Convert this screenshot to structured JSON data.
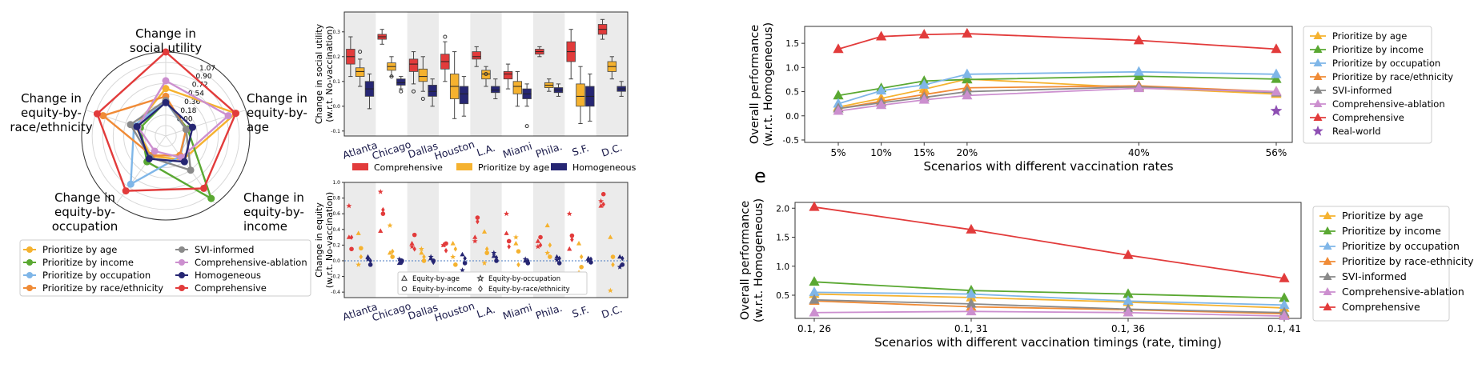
{
  "radar": {
    "axes": [
      "Change in\nsocial utility",
      "Change in\nequity-by-\nage",
      "Change in\nequity-by-\nincome",
      "Change in\nequity-by-\noccupation",
      "Change in\nequity-by-\nrace/ethnicity"
    ],
    "ticks": [
      "1.07",
      "0.90",
      "0.72",
      "0.54",
      "0.36",
      "0.18",
      "0.00"
    ],
    "range": [
      -0.36,
      1.25
    ],
    "series": [
      {
        "name": "Prioritize by age",
        "color": "#f5b22f",
        "values": [
          0.55,
          1.05,
          0.2,
          0.12,
          0.25
        ]
      },
      {
        "name": "Prioritize by income",
        "color": "#5aa832",
        "values": [
          0.3,
          0.08,
          1.12,
          0.25,
          0.15
        ]
      },
      {
        "name": "Prioritize by occupation",
        "color": "#7fb6e8",
        "values": [
          0.3,
          0.05,
          0.12,
          0.78,
          0.28
        ]
      },
      {
        "name": "Prioritize by race/ethnicity",
        "color": "#f08b36",
        "values": [
          0.4,
          0.05,
          0.1,
          0.1,
          0.9
        ]
      },
      {
        "name": "SVI-informed",
        "color": "#8a8a8a",
        "values": [
          0.32,
          0.05,
          0.45,
          0.15,
          0.35
        ]
      },
      {
        "name": "Comprehensive-ablation",
        "color": "#cc8fcf",
        "values": [
          0.7,
          0.9,
          0.15,
          0.0,
          0.2
        ]
      },
      {
        "name": "Homogeneous",
        "color": "#262673",
        "values": [
          0.28,
          0.18,
          0.25,
          0.18,
          0.22
        ]
      },
      {
        "name": "Comprehensive",
        "color": "#e23b3b",
        "values": [
          1.25,
          1.05,
          0.88,
          0.94,
          1.02
        ]
      }
    ],
    "legend_order": [
      0,
      4,
      1,
      5,
      2,
      6,
      3,
      7
    ]
  },
  "boxplot": {
    "ylabel": "Change in social utility\n(w.r.t. No-vaccination)",
    "yticks": [
      "-0.1",
      "0.0",
      "0.1",
      "0.2",
      "0.3"
    ],
    "ylim": [
      -0.12,
      0.38
    ],
    "cities": [
      "Atlanta",
      "Chicago",
      "Dallas",
      "Houston",
      "L.A.",
      "Miami",
      "Phila.",
      "S.F.",
      "D.C."
    ],
    "series": [
      {
        "name": "Comprehensive",
        "color": "#e23b3b",
        "boxes": [
          [
            0.12,
            0.17,
            0.2,
            0.23,
            0.28
          ],
          [
            0.25,
            0.27,
            0.28,
            0.29,
            0.31
          ],
          [
            0.09,
            0.14,
            0.17,
            0.19,
            0.22
          ],
          [
            0.1,
            0.15,
            0.18,
            0.21,
            0.26
          ],
          [
            0.16,
            0.19,
            0.2,
            0.22,
            0.24
          ],
          [
            0.07,
            0.11,
            0.13,
            0.14,
            0.17
          ],
          [
            0.2,
            0.21,
            0.22,
            0.23,
            0.24
          ],
          [
            0.11,
            0.18,
            0.22,
            0.26,
            0.31
          ],
          [
            0.27,
            0.29,
            0.31,
            0.33,
            0.35
          ]
        ]
      },
      {
        "name": "Prioritize by age",
        "color": "#f5b22f",
        "boxes": [
          [
            0.08,
            0.12,
            0.14,
            0.155,
            0.19
          ],
          [
            0.12,
            0.145,
            0.16,
            0.175,
            0.2
          ],
          [
            0.06,
            0.1,
            0.12,
            0.15,
            0.2
          ],
          [
            -0.05,
            0.03,
            0.08,
            0.13,
            0.22
          ],
          [
            0.08,
            0.11,
            0.13,
            0.145,
            0.16
          ],
          [
            0.0,
            0.05,
            0.08,
            0.1,
            0.14
          ],
          [
            0.06,
            0.075,
            0.085,
            0.095,
            0.11
          ],
          [
            -0.07,
            0.0,
            0.04,
            0.09,
            0.16
          ],
          [
            0.11,
            0.14,
            0.16,
            0.18,
            0.2
          ]
        ]
      },
      {
        "name": "Homogeneous",
        "color": "#262673",
        "boxes": [
          [
            -0.01,
            0.04,
            0.07,
            0.1,
            0.13
          ],
          [
            0.07,
            0.085,
            0.095,
            0.11,
            0.12
          ],
          [
            0.0,
            0.04,
            0.06,
            0.085,
            0.11
          ],
          [
            -0.04,
            0.01,
            0.05,
            0.08,
            0.12
          ],
          [
            0.03,
            0.055,
            0.065,
            0.08,
            0.11
          ],
          [
            0.0,
            0.03,
            0.05,
            0.07,
            0.09
          ],
          [
            0.04,
            0.055,
            0.065,
            0.075,
            0.09
          ],
          [
            -0.06,
            0.0,
            0.04,
            0.08,
            0.13
          ],
          [
            0.04,
            0.06,
            0.07,
            0.08,
            0.1
          ]
        ]
      }
    ],
    "outliers": [
      [
        0,
        1,
        0.22
      ],
      [
        1,
        1,
        0.12
      ],
      [
        1,
        2,
        0.06
      ],
      [
        2,
        0,
        0.06
      ],
      [
        2,
        1,
        0.03
      ],
      [
        4,
        1,
        0.13
      ],
      [
        5,
        2,
        -0.08
      ],
      [
        3,
        0,
        0.28
      ]
    ],
    "legend": [
      "Comprehensive",
      "Prioritize by age",
      "Homogeneous"
    ]
  },
  "equity": {
    "ylabel": "Change in equity\n(w.r.t. No-vaccination)",
    "yticks": [
      "-0.4",
      "-0.2",
      "0.0",
      "0.2",
      "0.4",
      "0.6",
      "0.8",
      "1.0"
    ],
    "ylim": [
      -0.47,
      1.0
    ],
    "cities": [
      "Atlanta",
      "Chicago",
      "Dallas",
      "Houston",
      "L.A.",
      "Miami",
      "Phila.",
      "S.F.",
      "D.C."
    ],
    "legend": [
      {
        "name": "Equity-by-age",
        "shape": "triangle"
      },
      {
        "name": "Equity-by-occupation",
        "shape": "star"
      },
      {
        "name": "Equity-by-income",
        "shape": "circle"
      },
      {
        "name": "Equity-by-race/ethnicity",
        "shape": "diamond"
      }
    ],
    "series": [
      {
        "name": "Comprehensive",
        "color": "#e23b3b",
        "values": [
          [
            0.3,
            0.15,
            0.7,
            0.3
          ],
          [
            0.38,
            0.6,
            0.88,
            0.65
          ],
          [
            0.22,
            0.33,
            0.18,
            0.15
          ],
          [
            0.2,
            0.22,
            0.2,
            0.13
          ],
          [
            0.3,
            0.55,
            0.25,
            0.5
          ],
          [
            0.35,
            0.25,
            0.6,
            0.18
          ],
          [
            0.25,
            0.3,
            0.18,
            0.2
          ],
          [
            0.15,
            0.32,
            0.6,
            0.27
          ],
          [
            0.7,
            0.85,
            0.76,
            0.72
          ]
        ]
      },
      {
        "name": "Prioritize by age",
        "color": "#f5b22f",
        "values": [
          [
            0.35,
            0.16,
            -0.05,
            0.05
          ],
          [
            0.1,
            0.05,
            0.45,
            0.12
          ],
          [
            0.1,
            0.0,
            0.15,
            0.05
          ],
          [
            0.22,
            -0.05,
            0.05,
            0.15
          ],
          [
            0.37,
            0.1,
            -0.03,
            0.15
          ],
          [
            0.22,
            0.12,
            0.3,
            -0.05
          ],
          [
            0.45,
            0.05,
            0.1,
            0.2
          ],
          [
            0.22,
            -0.08,
            -0.15,
            0.05
          ],
          [
            0.3,
            0.05,
            -0.38,
            -0.05
          ]
        ]
      },
      {
        "name": "Homogeneous",
        "color": "#262673",
        "values": [
          [
            0.05,
            -0.05,
            0.02,
            0.0
          ],
          [
            -0.03,
            0.0,
            0.02,
            -0.02
          ],
          [
            0.03,
            0.0,
            0.05,
            -0.02
          ],
          [
            0.08,
            -0.03,
            -0.12,
            0.03
          ],
          [
            0.06,
            0.0,
            0.1,
            0.04
          ],
          [
            0.0,
            -0.03,
            0.02,
            0.0
          ],
          [
            0.05,
            -0.03,
            0.01,
            0.03
          ],
          [
            0.03,
            -0.02,
            0.0,
            0.02
          ],
          [
            0.05,
            -0.05,
            -0.08,
            0.03
          ]
        ]
      }
    ]
  },
  "label_e": "e",
  "line_top": {
    "ylabel": "Overall performance\n(w.r.t. Homogeneous)",
    "xlabel": "Scenarios with different vaccination rates",
    "x": [
      5,
      10,
      15,
      20,
      40,
      56
    ],
    "xticks": [
      "5%",
      "10%",
      "15%",
      "20%",
      "40%",
      "56%"
    ],
    "yticks": [
      "-0.5",
      "0.0",
      "0.5",
      "1.0",
      "1.5"
    ],
    "ylim": [
      -0.55,
      1.85
    ],
    "series": [
      {
        "name": "Prioritize by age",
        "color": "#f5b22f",
        "values": [
          0.18,
          0.36,
          0.55,
          0.76,
          0.58,
          0.45
        ]
      },
      {
        "name": "Prioritize by income",
        "color": "#5aa832",
        "values": [
          0.42,
          0.57,
          0.72,
          0.75,
          0.82,
          0.76
        ]
      },
      {
        "name": "Prioritize by occupation",
        "color": "#7fb6e8",
        "values": [
          0.25,
          0.52,
          0.64,
          0.86,
          0.91,
          0.86
        ]
      },
      {
        "name": "Prioritize by race/ethnicity",
        "color": "#f08b36",
        "values": [
          0.15,
          0.3,
          0.44,
          0.58,
          0.62,
          0.5
        ]
      },
      {
        "name": "SVI-informed",
        "color": "#8a8a8a",
        "values": [
          0.15,
          0.27,
          0.38,
          0.5,
          0.6,
          0.48
        ]
      },
      {
        "name": "Comprehensive-ablation",
        "color": "#cc8fcf",
        "values": [
          0.1,
          0.22,
          0.33,
          0.42,
          0.57,
          0.5
        ]
      },
      {
        "name": "Comprehensive",
        "color": "#e23b3b",
        "values": [
          1.38,
          1.64,
          1.68,
          1.7,
          1.56,
          1.38
        ]
      }
    ],
    "real_world": {
      "name": "Real-world",
      "color": "#8e4fb3",
      "x": 56,
      "y": 0.1
    }
  },
  "line_bottom": {
    "ylabel": "Overall performance\n(w.r.t. Homogeneous)",
    "xlabel": "Scenarios with different vaccination timings (rate, timing)",
    "xticks": [
      "0.1, 26",
      "0.1, 31",
      "0.1, 36",
      "0.1, 41"
    ],
    "yticks": [
      "0.5",
      "1.0",
      "1.5",
      "2.0"
    ],
    "ylim": [
      0.1,
      2.1
    ],
    "series": [
      {
        "name": "Prioritize by age",
        "color": "#f5b22f",
        "values": [
          0.52,
          0.46,
          0.38,
          0.28
        ]
      },
      {
        "name": "Prioritize by income",
        "color": "#5aa832",
        "values": [
          0.73,
          0.58,
          0.52,
          0.45
        ]
      },
      {
        "name": "Prioritize by occupation",
        "color": "#7fb6e8",
        "values": [
          0.55,
          0.52,
          0.4,
          0.33
        ]
      },
      {
        "name": "Prioritize by race-ethnicity",
        "color": "#f08b36",
        "values": [
          0.4,
          0.3,
          0.25,
          0.18
        ]
      },
      {
        "name": "SVI-informed",
        "color": "#8a8a8a",
        "values": [
          0.42,
          0.35,
          0.26,
          0.2
        ]
      },
      {
        "name": "Comprehensive-ablation",
        "color": "#cc8fcf",
        "values": [
          0.2,
          0.22,
          0.2,
          0.14
        ]
      },
      {
        "name": "Comprehensive",
        "color": "#e23b3b",
        "values": [
          2.02,
          1.63,
          1.19,
          0.79
        ]
      }
    ]
  }
}
